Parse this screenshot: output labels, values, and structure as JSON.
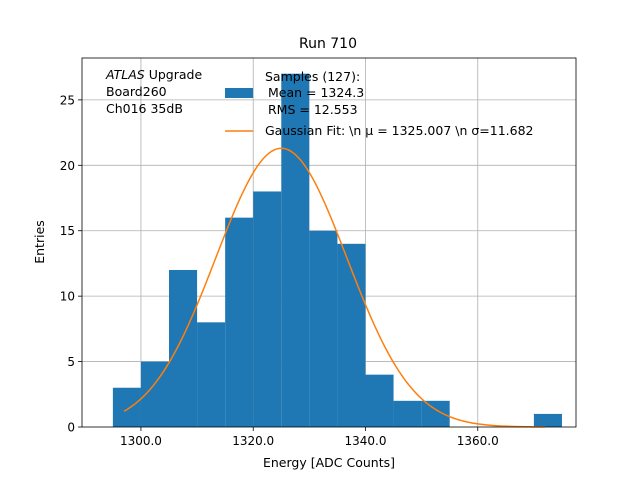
{
  "chart_data": {
    "type": "bar",
    "title": "Run 710",
    "xlabel": "Energy [ADC Counts]",
    "ylabel": "Entries",
    "xlim": [
      1289.5,
      1377.5
    ],
    "ylim": [
      0,
      28.2
    ],
    "xticks": [
      1300,
      1320,
      1340,
      1360
    ],
    "xtick_labels": [
      "1300.0",
      "1320.0",
      "1340.0",
      "1360.0"
    ],
    "yticks": [
      0,
      5,
      10,
      15,
      20,
      25
    ],
    "ytick_labels": [
      "0",
      "5",
      "10",
      "15",
      "20",
      "25"
    ],
    "grid": true,
    "bar_color": "#1f77b4",
    "line_color": "#ff7f0e",
    "bins": [
      {
        "x0": 1295,
        "x1": 1300,
        "count": 3
      },
      {
        "x0": 1300,
        "x1": 1305,
        "count": 5
      },
      {
        "x0": 1305,
        "x1": 1310,
        "count": 12
      },
      {
        "x0": 1310,
        "x1": 1315,
        "count": 8
      },
      {
        "x0": 1315,
        "x1": 1320,
        "count": 16
      },
      {
        "x0": 1320,
        "x1": 1325,
        "count": 18
      },
      {
        "x0": 1325,
        "x1": 1330,
        "count": 27
      },
      {
        "x0": 1330,
        "x1": 1335,
        "count": 15
      },
      {
        "x0": 1335,
        "x1": 1340,
        "count": 14
      },
      {
        "x0": 1340,
        "x1": 1345,
        "count": 4
      },
      {
        "x0": 1345,
        "x1": 1350,
        "count": 2
      },
      {
        "x0": 1350,
        "x1": 1355,
        "count": 2
      },
      {
        "x0": 1355,
        "x1": 1360,
        "count": 0
      },
      {
        "x0": 1360,
        "x1": 1365,
        "count": 0
      },
      {
        "x0": 1365,
        "x1": 1370,
        "count": 0
      },
      {
        "x0": 1370,
        "x1": 1375,
        "count": 1
      }
    ],
    "fit": {
      "type": "gaussian",
      "amplitude": 21.3,
      "mu": 1325.007,
      "sigma": 11.682,
      "x_range": [
        1297,
        1372
      ]
    },
    "annotation_lines": [
      "ATLAS Upgrade",
      "Board260",
      "Ch016 35dB"
    ],
    "legend": {
      "location": "top-right",
      "entries": [
        {
          "kind": "bar",
          "lines": [
            "Samples (127):",
            "Mean = 1324.3",
            "RMS = 12.553"
          ]
        },
        {
          "kind": "line",
          "lines": [
            "Gaussian Fit: \\n μ = 1325.007 \\n σ=11.682"
          ]
        }
      ]
    }
  }
}
